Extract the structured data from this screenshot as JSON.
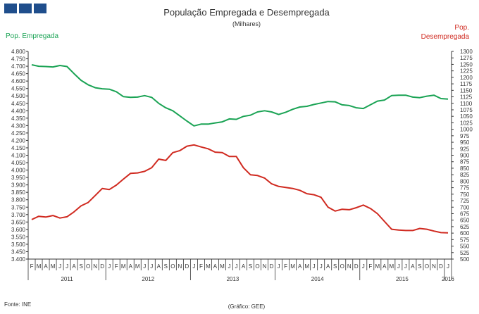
{
  "header": {
    "logo": "logo-icon"
  },
  "chart_data": {
    "type": "line",
    "title": "População Empregada e Desempregada",
    "subtitle": "(Milhares)",
    "source": "Fonte: INE",
    "credit": "(Gráfico: GEE)",
    "colors": {
      "empregada": "#1aa354",
      "desempregada": "#d02a20",
      "axis": "#333333"
    },
    "left_axis": {
      "label": "Pop. Empregada",
      "range": [
        3400,
        4800
      ],
      "tick_labels": [
        "3.400",
        "3.450",
        "3.500",
        "3.550",
        "3.600",
        "3.650",
        "3.700",
        "3.750",
        "3.800",
        "3.850",
        "3.900",
        "3.950",
        "4.000",
        "4.050",
        "4.100",
        "4.150",
        "4.200",
        "4.250",
        "4.300",
        "4.350",
        "4.400",
        "4.450",
        "4.500",
        "4.550",
        "4.600",
        "4.650",
        "4.700",
        "4.750",
        "4.800"
      ]
    },
    "right_axis": {
      "label_line1": "Pop.",
      "label_line2": "Desempregada",
      "range": [
        500,
        1300
      ],
      "tick_labels": [
        "500",
        "525",
        "550",
        "575",
        "600",
        "625",
        "650",
        "675",
        "700",
        "725",
        "750",
        "775",
        "800",
        "825",
        "850",
        "875",
        "900",
        "925",
        "950",
        "975",
        "1000",
        "1025",
        "1050",
        "1075",
        "1100",
        "1125",
        "1150",
        "1175",
        "1200",
        "1225",
        "1250",
        "1275",
        "1300"
      ]
    },
    "month_labels": [
      "F",
      "M",
      "A",
      "M",
      "J",
      "J",
      "A",
      "S",
      "O",
      "N",
      "D",
      "J",
      "F",
      "M",
      "A",
      "M",
      "J",
      "J",
      "A",
      "S",
      "O",
      "N",
      "D",
      "J",
      "F",
      "M",
      "A",
      "M",
      "J",
      "J",
      "A",
      "S",
      "O",
      "N",
      "D",
      "J",
      "F",
      "M",
      "A",
      "M",
      "J",
      "J",
      "A",
      "S",
      "O",
      "N",
      "D",
      "J",
      "F",
      "M",
      "A",
      "M",
      "J",
      "J",
      "A",
      "S",
      "O",
      "N",
      "D",
      "J"
    ],
    "years": [
      {
        "label": "2011",
        "start": 0,
        "end": 11
      },
      {
        "label": "2012",
        "start": 11,
        "end": 23
      },
      {
        "label": "2013",
        "start": 23,
        "end": 35
      },
      {
        "label": "2014",
        "start": 35,
        "end": 47
      },
      {
        "label": "2015",
        "start": 47,
        "end": 59
      },
      {
        "label": "2016",
        "start": 59,
        "end": 60
      }
    ],
    "series": [
      {
        "name": "Pop. Empregada",
        "axis": "left",
        "values": [
          4710,
          4700,
          4698,
          4695,
          4705,
          4698,
          4650,
          4605,
          4575,
          4555,
          4548,
          4545,
          4528,
          4495,
          4490,
          4492,
          4502,
          4490,
          4450,
          4420,
          4400,
          4365,
          4330,
          4298,
          4310,
          4310,
          4318,
          4325,
          4345,
          4342,
          4362,
          4370,
          4392,
          4400,
          4392,
          4375,
          4390,
          4410,
          4425,
          4430,
          4442,
          4452,
          4462,
          4460,
          4440,
          4435,
          4420,
          4415,
          4440,
          4465,
          4472,
          4502,
          4505,
          4505,
          4492,
          4488,
          4498,
          4505,
          4482,
          4478
        ]
      },
      {
        "name": "Pop. Desempregada",
        "axis": "right",
        "values": [
          652,
          665,
          662,
          668,
          658,
          663,
          682,
          705,
          718,
          745,
          772,
          768,
          785,
          808,
          830,
          832,
          838,
          852,
          885,
          880,
          910,
          918,
          935,
          940,
          932,
          925,
          912,
          910,
          895,
          895,
          852,
          825,
          822,
          812,
          790,
          780,
          776,
          772,
          765,
          752,
          748,
          738,
          700,
          685,
          692,
          690,
          698,
          708,
          695,
          675,
          645,
          615,
          612,
          610,
          610,
          618,
          615,
          608,
          602,
          601
        ]
      }
    ]
  }
}
